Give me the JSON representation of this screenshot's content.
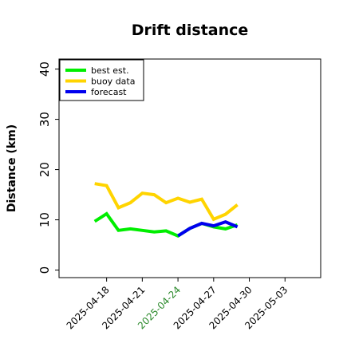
{
  "chart_data": {
    "type": "line",
    "title": "Drift distance",
    "xlabel": "",
    "ylabel": "Distance (km)",
    "ylim": [
      -1.5,
      42
    ],
    "yticks": [
      0,
      10,
      20,
      30,
      40
    ],
    "xlim": [
      "2025-04-14",
      "2025-05-06"
    ],
    "xticks": [
      {
        "date": "2025-04-18",
        "label": "2025-04-18",
        "color": "#000000"
      },
      {
        "date": "2025-04-21",
        "label": "2025-04-21",
        "color": "#000000"
      },
      {
        "date": "2025-04-24",
        "label": "2025-04-24",
        "color": "#2e8b2e"
      },
      {
        "date": "2025-04-27",
        "label": "2025-04-27",
        "color": "#000000"
      },
      {
        "date": "2025-04-30",
        "label": "2025-04-30",
        "color": "#000000"
      },
      {
        "date": "2025-05-03",
        "label": "2025-05-03",
        "color": "#000000"
      }
    ],
    "grid": false,
    "legend_position": "top-left",
    "series": [
      {
        "name": "best est.",
        "color": "#00ee00",
        "x": [
          "2025-04-17",
          "2025-04-18",
          "2025-04-19",
          "2025-04-20",
          "2025-04-21",
          "2025-04-22",
          "2025-04-23",
          "2025-04-24",
          "2025-04-25",
          "2025-04-26",
          "2025-04-27",
          "2025-04-28",
          "2025-04-29"
        ],
        "y": [
          9.7,
          11.2,
          7.9,
          8.2,
          7.9,
          7.6,
          7.8,
          6.8,
          8.3,
          9.3,
          8.6,
          8.2,
          9.0
        ]
      },
      {
        "name": "buoy data",
        "color": "#ffd400",
        "x": [
          "2025-04-17",
          "2025-04-18",
          "2025-04-19",
          "2025-04-20",
          "2025-04-21",
          "2025-04-22",
          "2025-04-23",
          "2025-04-24",
          "2025-04-25",
          "2025-04-26",
          "2025-04-27",
          "2025-04-28",
          "2025-04-29"
        ],
        "y": [
          17.2,
          16.8,
          12.4,
          13.4,
          15.3,
          15.0,
          13.4,
          14.3,
          13.5,
          14.1,
          10.1,
          11.1,
          13.0
        ]
      },
      {
        "name": "forecast",
        "color": "#0000ee",
        "x": [
          "2025-04-24",
          "2025-04-25",
          "2025-04-26",
          "2025-04-27",
          "2025-04-28",
          "2025-04-29"
        ],
        "y": [
          6.8,
          8.3,
          9.3,
          8.8,
          9.6,
          8.6
        ]
      }
    ]
  }
}
